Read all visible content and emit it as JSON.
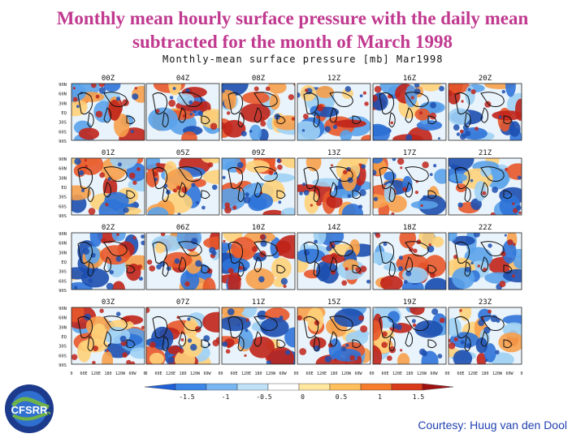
{
  "slide": {
    "title_line1": "Monthly mean hourly surface pressure with the daily mean",
    "title_line2": "subtracted for the month of March 1998",
    "courtesy": "Courtesy: Huug van den Dool",
    "logo_text": "CFSRR",
    "colors": {
      "title": "#c0398f",
      "courtesy": "#1f3fb0"
    }
  },
  "figure": {
    "title": "Monthly-mean surface pressure [mb] Mar1998",
    "hours": [
      "00Z",
      "04Z",
      "08Z",
      "12Z",
      "16Z",
      "20Z",
      "01Z",
      "05Z",
      "09Z",
      "13Z",
      "17Z",
      "21Z",
      "02Z",
      "06Z",
      "10Z",
      "14Z",
      "18Z",
      "22Z",
      "03Z",
      "07Z",
      "11Z",
      "15Z",
      "19Z",
      "23Z"
    ],
    "lat_labels": [
      "90N",
      "60N",
      "30N",
      "EQ",
      "30S",
      "60S",
      "90S"
    ],
    "lon_labels": [
      "0",
      "60E",
      "120E",
      "180",
      "120W",
      "60W",
      "0"
    ],
    "colorbar": {
      "labels": [
        "-1.5",
        "-1",
        "-0.5",
        "0",
        "0.5",
        "1",
        "1.5"
      ],
      "colors": [
        "#1f5fd6",
        "#3c86e8",
        "#7ab6f2",
        "#bfe0f7",
        "#ffffff",
        "#ffe7a0",
        "#ffbf5a",
        "#f57d2b",
        "#d93a1a",
        "#a01010"
      ]
    }
  }
}
